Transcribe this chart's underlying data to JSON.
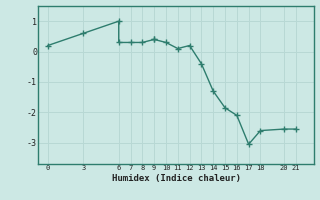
{
  "title": "",
  "xlabel": "Humidex (Indice chaleur)",
  "ylabel": "",
  "x_data": [
    0,
    3,
    6,
    6,
    7,
    8,
    9,
    9,
    10,
    11,
    12,
    13,
    14,
    15,
    16,
    17,
    18,
    20,
    21
  ],
  "y_data": [
    0.2,
    0.6,
    1.0,
    0.3,
    0.3,
    0.3,
    0.4,
    0.4,
    0.3,
    0.1,
    0.2,
    -0.4,
    -1.3,
    -1.85,
    -2.1,
    -3.05,
    -2.6,
    -2.55,
    -2.55
  ],
  "line_color": "#2e7d6e",
  "bg_color": "#cce8e4",
  "grid_color": "#b8d8d4",
  "tick_label_color": "#222222",
  "xticks": [
    0,
    3,
    6,
    7,
    8,
    9,
    10,
    11,
    12,
    13,
    14,
    15,
    16,
    17,
    18,
    20,
    21
  ],
  "yticks": [
    1,
    0,
    -1,
    -2,
    -3
  ],
  "xlim": [
    -0.8,
    22.5
  ],
  "ylim": [
    -3.7,
    1.5
  ],
  "marker": "+",
  "markersize": 4,
  "linewidth": 1.0
}
